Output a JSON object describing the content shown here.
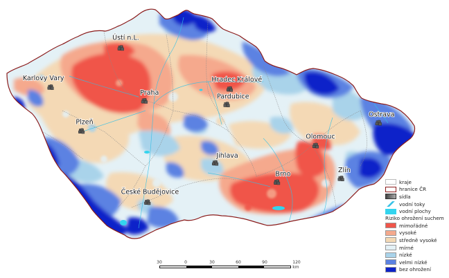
{
  "map": {
    "cities": [
      {
        "name": "Ústí n.L.",
        "lon": 14.03,
        "lat": 50.66
      },
      {
        "name": "Karlovy Vary",
        "lon": 12.87,
        "lat": 50.23
      },
      {
        "name": "Praha",
        "lon": 14.42,
        "lat": 50.08
      },
      {
        "name": "Hradec Králové",
        "lon": 15.83,
        "lat": 50.21
      },
      {
        "name": "Pardubice",
        "lon": 15.78,
        "lat": 50.04
      },
      {
        "name": "Plzeň",
        "lon": 13.38,
        "lat": 49.75
      },
      {
        "name": "Ostrava",
        "lon": 18.29,
        "lat": 49.84
      },
      {
        "name": "Olomouc",
        "lon": 17.25,
        "lat": 49.59
      },
      {
        "name": "Jihlava",
        "lon": 15.59,
        "lat": 49.4
      },
      {
        "name": "Zlín",
        "lon": 17.67,
        "lat": 49.23
      },
      {
        "name": "Brno",
        "lon": 16.61,
        "lat": 49.19
      },
      {
        "name": "České Budějovice",
        "lon": 14.47,
        "lat": 48.97
      }
    ]
  },
  "legend": {
    "line_items": [
      {
        "label": "kraje",
        "style": "kraje"
      },
      {
        "label": "hranice ČR",
        "style": "hranice"
      },
      {
        "label": "sídla",
        "style": "sidla"
      },
      {
        "label": "vodní toky",
        "style": "toky"
      },
      {
        "label": "vodní plochy",
        "style": "plochy"
      }
    ],
    "title": "Riziko ohrožení suchem",
    "classes": [
      {
        "label": "mimořádné",
        "color": "#f0554a"
      },
      {
        "label": "vysoké",
        "color": "#f5a98d"
      },
      {
        "label": "středně vysoké",
        "color": "#f4d9b5"
      },
      {
        "label": "mírné",
        "color": "#e4f1f6"
      },
      {
        "label": "nízké",
        "color": "#a9d3ea"
      },
      {
        "label": "velmi nízké",
        "color": "#5b82e2"
      },
      {
        "label": "bez ohrožení",
        "color": "#0d23c9"
      }
    ]
  },
  "scale": {
    "ticks": [
      "30",
      "0",
      "30",
      "60",
      "90",
      "120 km"
    ]
  }
}
